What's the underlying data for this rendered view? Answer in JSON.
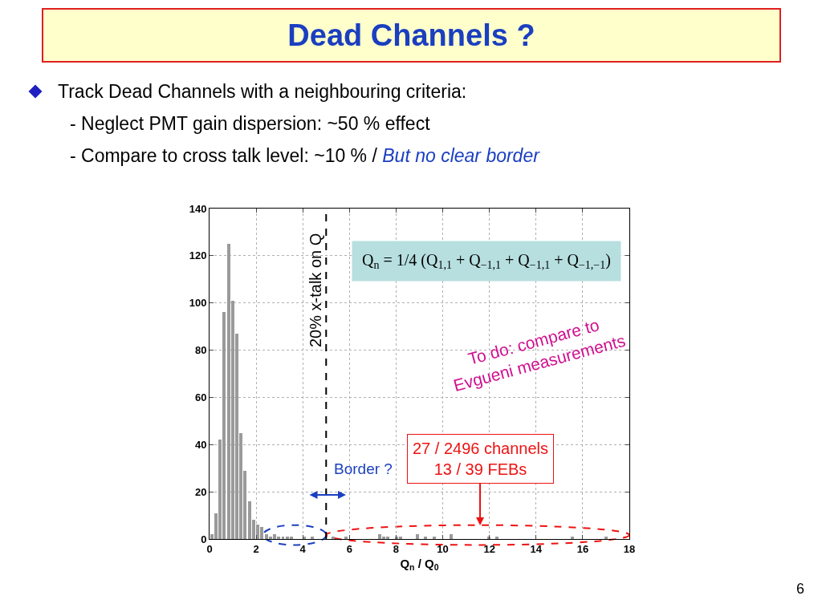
{
  "chart_data": {
    "type": "histogram",
    "title": "Dead Channels ?",
    "subtitle": "Track Dead Channels with a neighbouring criteria:",
    "xlabel": "Q$_{n}$ / Q$_{0}$",
    "bins": [
      0,
      0.18,
      0.36,
      0.54,
      0.72,
      0.9,
      1.08,
      1.26,
      1.44,
      1.62,
      1.8,
      1.98,
      2.16,
      2.34,
      2.52,
      2.7,
      2.88,
      3.06,
      3.24,
      3.42,
      3.6,
      3.78,
      3.96,
      4.14,
      4.32,
      4.5,
      4.68,
      4.86,
      5.04,
      5.22,
      5.4,
      5.58,
      5.76,
      5.94,
      6.12,
      6.3,
      6.48,
      6.66,
      6.84,
      7.02,
      7.2,
      7.38,
      7.56,
      7.74,
      7.92,
      8.1,
      8.28,
      8.46,
      8.64,
      8.82,
      9,
      9.18,
      9.36,
      9.54,
      9.72,
      9.9,
      10.08,
      10.26,
      10.44,
      10.62,
      10.8,
      10.98,
      11.16,
      11.34,
      11.52,
      11.7,
      11.88,
      12.06,
      12.24,
      12.42,
      12.6,
      12.78,
      12.96,
      13.14,
      13.32,
      13.5,
      13.68,
      13.86,
      14.04,
      14.22,
      14.4,
      14.58,
      14.76,
      14.94,
      15.12,
      15.3,
      15.48,
      15.66,
      15.84,
      16.02,
      16.2,
      16.38,
      16.56,
      16.74,
      16.92,
      17.1,
      17.28,
      17.46,
      17.64,
      17.82,
      18
    ],
    "values": [
      2,
      11,
      42,
      96,
      125,
      101,
      87,
      45,
      29,
      16,
      8,
      6,
      5,
      2,
      1,
      2,
      1,
      1,
      1,
      1,
      0,
      0,
      1,
      0,
      1,
      0,
      0,
      0,
      0,
      1,
      0,
      0,
      1,
      0,
      0,
      0,
      0,
      0,
      0,
      0,
      2,
      1,
      1,
      0,
      1,
      1,
      0,
      0,
      0,
      2,
      0,
      1,
      0,
      1,
      0,
      0,
      0,
      2,
      0,
      0,
      0,
      0,
      0,
      0,
      0,
      0,
      1,
      0,
      1,
      0,
      0,
      0,
      0,
      0,
      0,
      0,
      0,
      0,
      0,
      0,
      0,
      0,
      0,
      0,
      0,
      0,
      1,
      0,
      0,
      0,
      0,
      0,
      0,
      0,
      1,
      0,
      0,
      0,
      0,
      0
    ],
    "color": "#9a9a9a",
    "xlim": [
      0,
      18
    ],
    "xticks": [
      0,
      2,
      4,
      6,
      8,
      10,
      12,
      14,
      16,
      18
    ],
    "ylim": [
      0,
      140
    ],
    "yticks": [
      0,
      20,
      40,
      60,
      80,
      100,
      120,
      140
    ],
    "grid": true,
    "ref_lines": [
      {
        "axis": "x",
        "value": 5,
        "label": "20% x-talk on Q",
        "color": "#000000",
        "line_style": "dashed"
      }
    ],
    "annotations": [
      "- Neglect PMT gain dispersion: ~50 % effect",
      "- Compare to cross talk level: ~10 % /",
      "But no clear border",
      "Q$_{n}$ = 1/4 (Q$_{1,1}$ + Q$_{−1,1}$ + Q$_{−1,1}$ + Q$_{−1,−1}$)",
      "To do: compare to\nEvgueni measurements",
      "27 / 2496 channels\n13 / 39 FEBs",
      "Border ?",
      "6"
    ]
  }
}
